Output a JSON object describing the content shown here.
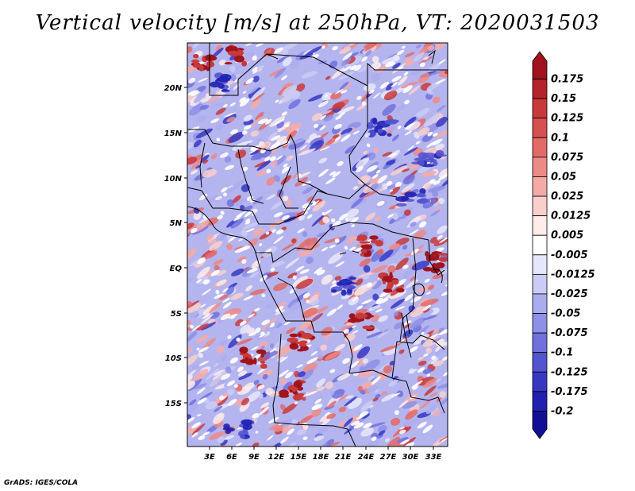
{
  "title": "Vertical velocity [m/s] at 250hPa, VT: 2020031503",
  "footer": "GrADS: IGES/COLA",
  "map": {
    "lat_ticks": [
      "20N",
      "15N",
      "10N",
      "5N",
      "EQ",
      "5S",
      "10S",
      "15S"
    ],
    "lon_ticks": [
      "3E",
      "6E",
      "9E",
      "12E",
      "15E",
      "18E",
      "21E",
      "24E",
      "27E",
      "30E",
      "33E"
    ]
  },
  "colorbar": {
    "labels": [
      "0.175",
      "0.15",
      "0.125",
      "0.1",
      "0.075",
      "0.05",
      "0.025",
      "0.0125",
      "0.005",
      "-0.005",
      "-0.0125",
      "-0.025",
      "-0.05",
      "-0.075",
      "-0.1",
      "-0.125",
      "-0.175",
      "-0.2"
    ],
    "colors": [
      "#a0141e",
      "#b4232b",
      "#c83a3a",
      "#d75050",
      "#e26a67",
      "#ec8a86",
      "#f4aba8",
      "#f9cfcc",
      "#fdecea",
      "#ffffff",
      "#e7e7fb",
      "#cbcbf6",
      "#abacef",
      "#8e8fe6",
      "#7071dc",
      "#5354d0",
      "#3738c2",
      "#2021b1",
      "#120f96"
    ]
  }
}
